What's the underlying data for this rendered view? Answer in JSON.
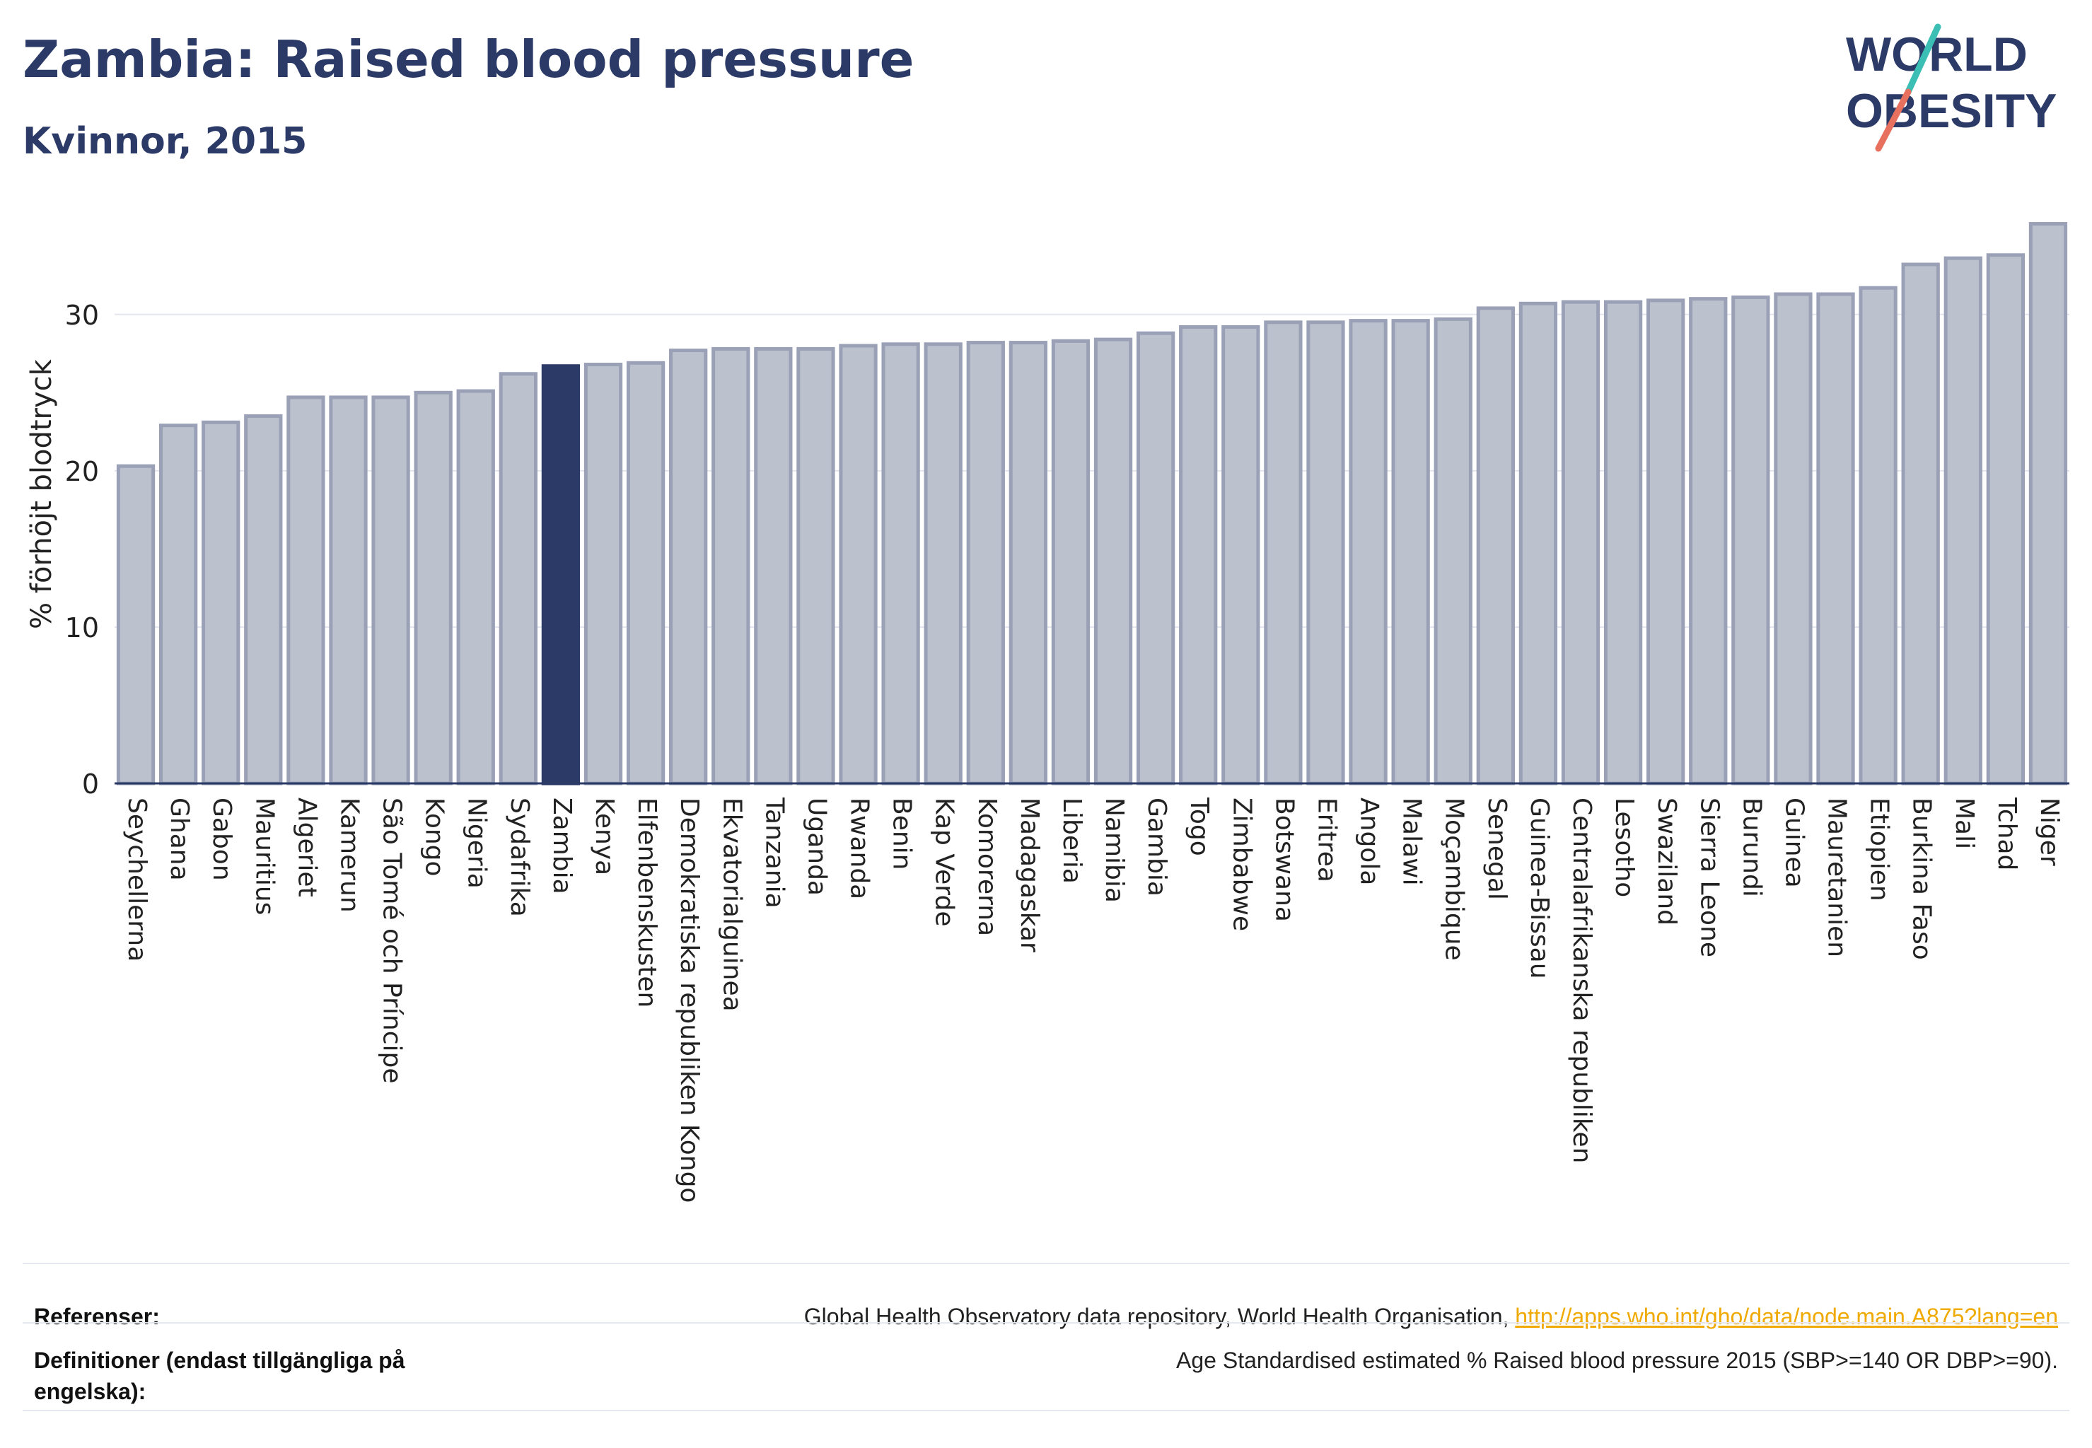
{
  "header": {
    "title": "Zambia: Raised blood pressure",
    "subtitle": "Kvinnor, 2015",
    "logo_line1": "WORLD",
    "logo_line2": "OBESITY"
  },
  "colors": {
    "title": "#2b3a67",
    "bar": "#bcc1ce",
    "bar_stroke": "#9aa1b6",
    "highlight": "#2b3a67",
    "link": "#f0a900",
    "logo_teal": "#3bbfb5",
    "logo_coral": "#e8705e"
  },
  "chart_data": {
    "type": "bar",
    "ylabel": "% förhöjt blodtryck",
    "ylim": [
      0,
      37
    ],
    "yticks": [
      0,
      10,
      20,
      30
    ],
    "grid": true,
    "highlight": "Zambia",
    "categories": [
      "Seychellerna",
      "Ghana",
      "Gabon",
      "Mauritius",
      "Algeriet",
      "Kamerun",
      "São Tomé och Príncipe",
      "Kongo",
      "Nigeria",
      "Sydafrika",
      "Zambia",
      "Kenya",
      "Elfenbenskusten",
      "Demokratiska republiken Kongo",
      "Ekvatorialguinea",
      "Tanzania",
      "Uganda",
      "Rwanda",
      "Benin",
      "Kap Verde",
      "Komorerna",
      "Madagaskar",
      "Liberia",
      "Namibia",
      "Gambia",
      "Togo",
      "Zimbabwe",
      "Botswana",
      "Eritrea",
      "Angola",
      "Malawi",
      "Moçambique",
      "Senegal",
      "Guinea-Bissau",
      "Centralafrikanska republiken",
      "Lesotho",
      "Swaziland",
      "Sierra Leone",
      "Burundi",
      "Guinea",
      "Mauretanien",
      "Etiopien",
      "Burkina Faso",
      "Mali",
      "Tchad",
      "Niger"
    ],
    "values": [
      20.3,
      22.9,
      23.1,
      23.5,
      24.7,
      24.7,
      24.7,
      25.0,
      25.1,
      26.2,
      26.7,
      26.8,
      26.9,
      27.7,
      27.8,
      27.8,
      27.8,
      28.0,
      28.1,
      28.1,
      28.2,
      28.2,
      28.3,
      28.4,
      28.8,
      29.2,
      29.2,
      29.5,
      29.5,
      29.6,
      29.6,
      29.7,
      30.4,
      30.7,
      30.8,
      30.8,
      30.9,
      31.0,
      31.1,
      31.3,
      31.3,
      31.7,
      33.2,
      33.6,
      33.8,
      35.8
    ]
  },
  "footer": {
    "references_label": "Referenser:",
    "references_text": "Global Health Observatory data repository, World Health Organisation, ",
    "references_link": "http://apps.who.int/gho/data/node.main.A875?lang=en",
    "definitions_label": "Definitioner (endast tillgängliga på engelska):",
    "definitions_text": "Age Standardised estimated % Raised blood pressure 2015 (SBP>=140 OR DBP>=90)."
  }
}
